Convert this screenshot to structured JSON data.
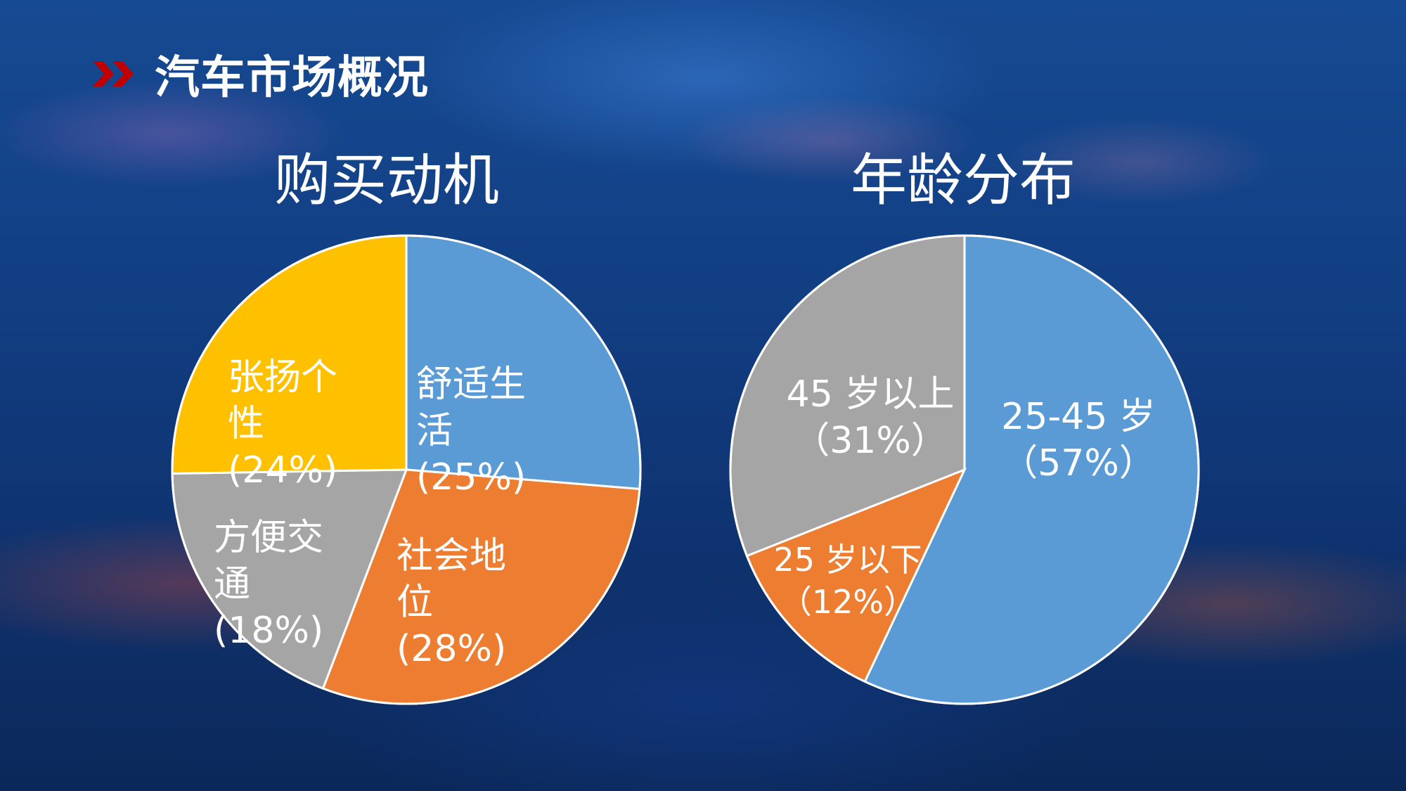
{
  "page": {
    "title": "汽车市场概况"
  },
  "colors": {
    "blue": "#5b9bd5",
    "orange": "#ed7d31",
    "gray": "#a5a5a5",
    "yellow": "#ffc000",
    "accent_red": "#c00000"
  },
  "chart_data": [
    {
      "type": "pie",
      "title": "购买动机",
      "slices": [
        {
          "name": "舒适生活",
          "value": 25,
          "label": "(25%)",
          "color": "#5b9bd5"
        },
        {
          "name": "社会地位",
          "value": 28,
          "label": "(28%)",
          "color": "#ed7d31"
        },
        {
          "name": "方便交通",
          "value": 18,
          "label": "(18%)",
          "color": "#a5a5a5"
        },
        {
          "name": "张扬个性",
          "value": 24,
          "label": "(24%)",
          "color": "#ffc000"
        }
      ]
    },
    {
      "type": "pie",
      "title": "年龄分布",
      "slices": [
        {
          "name": "25-45 岁",
          "value": 57,
          "label": "（57%）",
          "color": "#5b9bd5"
        },
        {
          "name": "25 岁以下",
          "value": 12,
          "label": "（12%）",
          "color": "#ed7d31"
        },
        {
          "name": "45 岁以上",
          "value": 31,
          "label": "（31%）",
          "color": "#a5a5a5"
        }
      ]
    }
  ]
}
